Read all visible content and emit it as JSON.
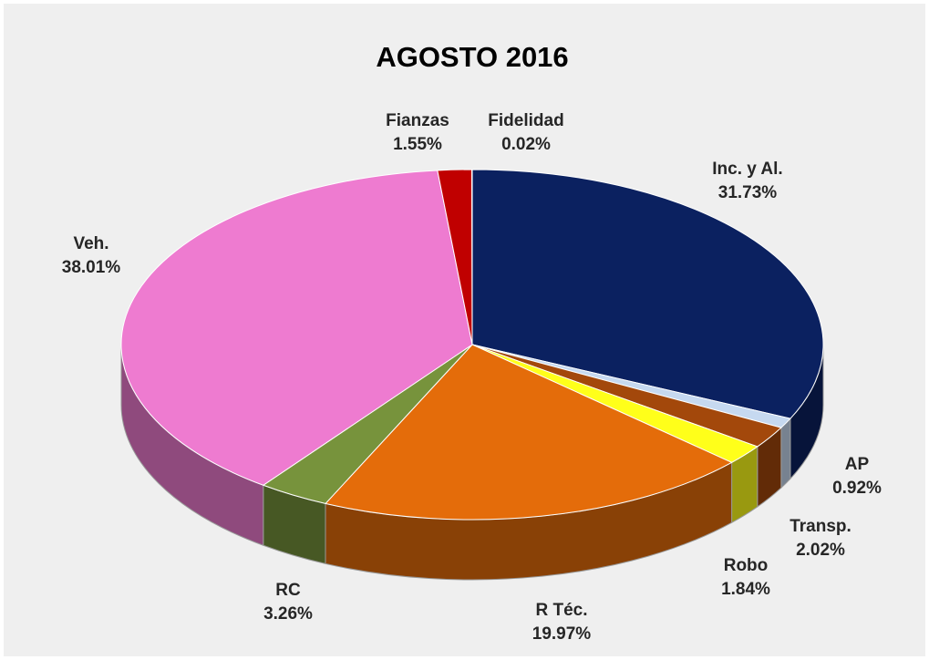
{
  "chart_data": {
    "type": "pie",
    "title": "AGOSTO 2016",
    "categories": [
      "Inc. y Al.",
      "AP",
      "Transp.",
      "Robo",
      "R Téc.",
      "RC",
      "Veh.",
      "Fianzas",
      "Fidelidad"
    ],
    "values": [
      31.73,
      0.92,
      2.02,
      1.84,
      19.97,
      3.26,
      38.01,
      1.55,
      0.02
    ],
    "value_labels": [
      "31.73%",
      "0.92%",
      "2.02%",
      "1.84%",
      "19.97%",
      "3.26%",
      "38.01%",
      "1.55%",
      "0.02%"
    ],
    "colors": [
      "#0b2160",
      "#c6d9f0",
      "#a3480b",
      "#ffff1a",
      "#e46c0a",
      "#77933c",
      "#ee7bd0",
      "#c00000",
      "#7a2a05"
    ]
  }
}
